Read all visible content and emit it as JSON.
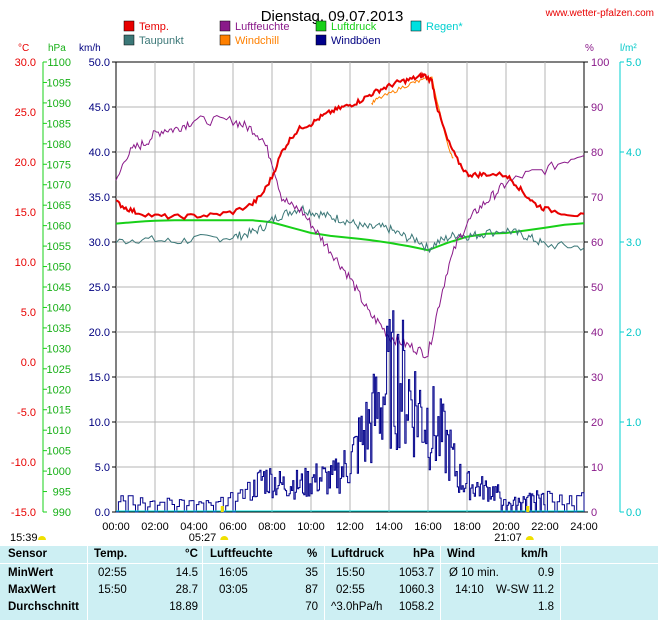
{
  "title": "Dienstag, 09.07.2013",
  "site": "www.wetter-pfalzen.com",
  "legend": [
    {
      "label": "Temp.",
      "color": "#e80000"
    },
    {
      "label": "Luftfeuchte",
      "color": "#8a1a8a"
    },
    {
      "label": "Luftdruck",
      "color": "#18d018"
    },
    {
      "label": "Regen*",
      "color": "#00e0e0"
    },
    {
      "label": "Taupunkt",
      "color": "#3c7878"
    },
    {
      "label": "Windchill",
      "color": "#ff8000"
    },
    {
      "label": "Windböen",
      "color": "#00008b"
    }
  ],
  "axis_units": {
    "temp": "°C",
    "pressure": "hPa",
    "wind": "km/h",
    "humidity": "%",
    "rain": "l/m²"
  },
  "colors": {
    "temp": "#e80000",
    "humidity": "#8a1a8a",
    "pressure": "#18d018",
    "rain": "#00e0e0",
    "dew": "#3c7878",
    "windchill": "#ff8000",
    "gust": "#00008b",
    "table_bg": "#cdeff3"
  },
  "chart_data": {
    "type": "line",
    "title": "Dienstag, 09.07.2013",
    "x_ticks": [
      "00:00",
      "02:00",
      "04:00",
      "06:00",
      "08:00",
      "10:00",
      "12:00",
      "14:00",
      "16:00",
      "18:00",
      "20:00",
      "22:00",
      "24:00"
    ],
    "axes": {
      "temp": {
        "label": "°C",
        "range": [
          -15,
          30
        ],
        "ticks": [
          "30.0",
          "25.0",
          "20.0",
          "15.0",
          "10.0",
          "5.0",
          "0.0",
          "-5.0",
          "-10.0",
          "-15.0"
        ]
      },
      "pressure": {
        "label": "hPa",
        "range": [
          990,
          1100
        ],
        "ticks": [
          "1100",
          "1095",
          "1090",
          "1085",
          "1080",
          "1075",
          "1070",
          "1065",
          "1060",
          "1055",
          "1050",
          "1045",
          "1040",
          "1035",
          "1030",
          "1025",
          "1020",
          "1015",
          "1010",
          "1005",
          "1000",
          "995",
          "990"
        ]
      },
      "wind": {
        "label": "km/h",
        "range": [
          0,
          50
        ],
        "ticks": [
          "50.0",
          "45.0",
          "40.0",
          "35.0",
          "30.0",
          "25.0",
          "20.0",
          "15.0",
          "10.0",
          "5.0",
          "0.0"
        ]
      },
      "humidity": {
        "label": "%",
        "range": [
          0,
          100
        ],
        "ticks": [
          "100",
          "90",
          "80",
          "70",
          "60",
          "50",
          "40",
          "30",
          "20",
          "10",
          "0"
        ]
      },
      "rain": {
        "label": "l/m²",
        "range": [
          0,
          5
        ],
        "ticks": [
          "5.0",
          "4.0",
          "3.0",
          "2.0",
          "1.0",
          "0.0"
        ]
      }
    },
    "sunrise": "05:27",
    "sunset": "21:07",
    "daylight_start_label": "15:39",
    "series": [
      {
        "name": "Temp.",
        "axis": "temp",
        "color": "#e80000",
        "x": [
          0,
          0.5,
          1,
          2,
          3,
          4,
          5,
          6,
          7,
          7.5,
          8,
          8.5,
          9,
          9.5,
          10,
          10.5,
          11,
          11.5,
          12,
          12.5,
          13,
          13.5,
          14,
          14.5,
          15,
          15.5,
          15.8,
          16.2,
          16.5,
          17,
          17.5,
          18,
          18.5,
          19,
          20,
          20.5,
          21,
          21.5,
          22,
          23,
          24
        ],
        "y": [
          16.0,
          15.4,
          15.0,
          14.6,
          14.5,
          14.6,
          14.7,
          15.0,
          15.8,
          16.8,
          18.5,
          21.0,
          22.5,
          23.5,
          23.8,
          24.5,
          25.0,
          25.4,
          25.7,
          26.1,
          26.7,
          27.2,
          27.6,
          28.0,
          28.2,
          28.5,
          28.7,
          28.1,
          25.2,
          22.2,
          20.2,
          18.8,
          18.7,
          18.8,
          18.7,
          17.8,
          16.7,
          15.8,
          15.3,
          14.9,
          14.6
        ]
      },
      {
        "name": "Taupunkt",
        "axis": "temp",
        "color": "#3c7878",
        "x": [
          0,
          1,
          2,
          3,
          4,
          5,
          6,
          6.5,
          7,
          7.5,
          8,
          8.5,
          9,
          9.5,
          10,
          10.5,
          11,
          11.5,
          12,
          12.5,
          13,
          13.5,
          14,
          14.5,
          15,
          15.5,
          16,
          16.5,
          17,
          17.5,
          18,
          18.5,
          19,
          20,
          20.5,
          21,
          21.5,
          22,
          23,
          24
        ],
        "y": [
          12.0,
          12.3,
          12.2,
          12.0,
          12.3,
          12.4,
          12.5,
          12.7,
          13.0,
          13.4,
          14.2,
          14.7,
          15.1,
          15.4,
          15.0,
          14.8,
          14.5,
          14.3,
          14.0,
          13.6,
          13.4,
          13.5,
          13.3,
          12.8,
          12.4,
          12.2,
          11.3,
          12.0,
          12.4,
          12.8,
          12.6,
          12.7,
          12.9,
          13.2,
          12.9,
          12.6,
          12.2,
          11.7,
          11.6,
          11.5
        ]
      },
      {
        "name": "Windchill",
        "axis": "temp",
        "color": "#ff8000",
        "x": [
          13.1,
          13.4,
          14.0,
          14.6,
          15.2,
          15.6,
          16.2,
          17.0,
          17.3
        ],
        "y": [
          25.8,
          26.3,
          26.8,
          27.4,
          27.9,
          28.1,
          28.4,
          21.7,
          20.4
        ]
      },
      {
        "name": "Luftfeuchte",
        "axis": "humidity",
        "color": "#8a1a8a",
        "x": [
          0,
          0.5,
          1,
          1.5,
          2,
          2.5,
          3,
          3.5,
          4,
          5,
          6,
          6.5,
          7,
          7.5,
          8,
          8.5,
          9,
          9.5,
          10,
          10.5,
          11,
          11.5,
          12,
          12.5,
          13,
          13.5,
          14,
          14.5,
          15,
          15.5,
          16,
          16.5,
          17,
          17.5,
          18,
          18.5,
          19,
          19.5,
          20,
          21,
          22,
          23,
          24
        ],
        "y": [
          73,
          79,
          81,
          82,
          84,
          85,
          85,
          86,
          87,
          87,
          87,
          86,
          85,
          83,
          78,
          70,
          68,
          67,
          64,
          61,
          58,
          55,
          52,
          48,
          44,
          42,
          39,
          38,
          37,
          36,
          35,
          45,
          54,
          60,
          64,
          67,
          69,
          71,
          73,
          75,
          76,
          78,
          80
        ]
      },
      {
        "name": "Luftdruck",
        "axis": "pressure",
        "color": "#18d018",
        "x": [
          0,
          1,
          2,
          3,
          4,
          5,
          6,
          7,
          8,
          9,
          10,
          11,
          12,
          13,
          14,
          15,
          16,
          17,
          18,
          19,
          20,
          21,
          22,
          23,
          24
        ],
        "y": [
          1060.5,
          1060.9,
          1061.2,
          1061.3,
          1061.3,
          1061.3,
          1061.3,
          1061.3,
          1060.8,
          1059.5,
          1058.2,
          1057.5,
          1057.0,
          1056.5,
          1055.8,
          1055.0,
          1054.0,
          1055.8,
          1057.3,
          1058.0,
          1058.2,
          1058.8,
          1059.5,
          1060.2,
          1060.6
        ]
      },
      {
        "name": "Windböen",
        "axis": "wind",
        "color": "#00008b",
        "x": [
          0,
          1,
          2,
          3,
          4,
          5,
          6,
          7,
          7.5,
          8,
          8.5,
          9,
          9.5,
          10,
          10.5,
          11,
          11.5,
          12,
          12.5,
          13,
          13.5,
          14,
          14.5,
          15,
          15.5,
          16,
          16.5,
          17,
          17.5,
          18,
          18.5,
          19,
          19.5,
          20,
          20.5,
          21,
          21.5,
          22,
          23,
          24
        ],
        "y": [
          1.5,
          1.5,
          0.8,
          1.2,
          1.0,
          0.8,
          1.5,
          2.5,
          3.8,
          3.5,
          3.0,
          3.2,
          3.0,
          3.5,
          3.8,
          3.5,
          4.5,
          5.5,
          7.8,
          9.5,
          12.0,
          14.5,
          15.0,
          13.0,
          11.5,
          10.0,
          8.5,
          7.2,
          4.0,
          3.0,
          2.8,
          2.5,
          2.2,
          0.8,
          1.2,
          1.5,
          1.5,
          1.8,
          1.5,
          1.5
        ]
      }
    ]
  },
  "stats": {
    "headers": {
      "sensor": "Sensor",
      "temp": "Temp.",
      "temp_unit": "°C",
      "hum": "Luftfeuchte",
      "hum_unit": "%",
      "press": "Luftdruck",
      "press_unit": "hPa",
      "wind": "Wind",
      "wind_unit": "km/h"
    },
    "rows": [
      {
        "label": "MinWert",
        "t_time": "02:55",
        "t_val": "14.5",
        "h_time": "16:05",
        "h_val": "35",
        "p_time": "15:50",
        "p_val": "1053.7",
        "w_time": "Ø 10 min.",
        "w_dir": "",
        "w_val": "0.9"
      },
      {
        "label": "MaxWert",
        "t_time": "15:50",
        "t_val": "28.7",
        "h_time": "03:05",
        "h_val": "87",
        "p_time": "02:55",
        "p_val": "1060.3",
        "w_time": "14:10",
        "w_dir": "W-SW",
        "w_val": "11.2"
      },
      {
        "label": "Durchschnitt",
        "t_time": "",
        "t_val": "18.89",
        "h_time": "",
        "h_val": "70",
        "p_time": "^3.0hPa/h",
        "p_val": "1058.2",
        "w_time": "",
        "w_dir": "",
        "w_val": "1.8"
      }
    ]
  }
}
